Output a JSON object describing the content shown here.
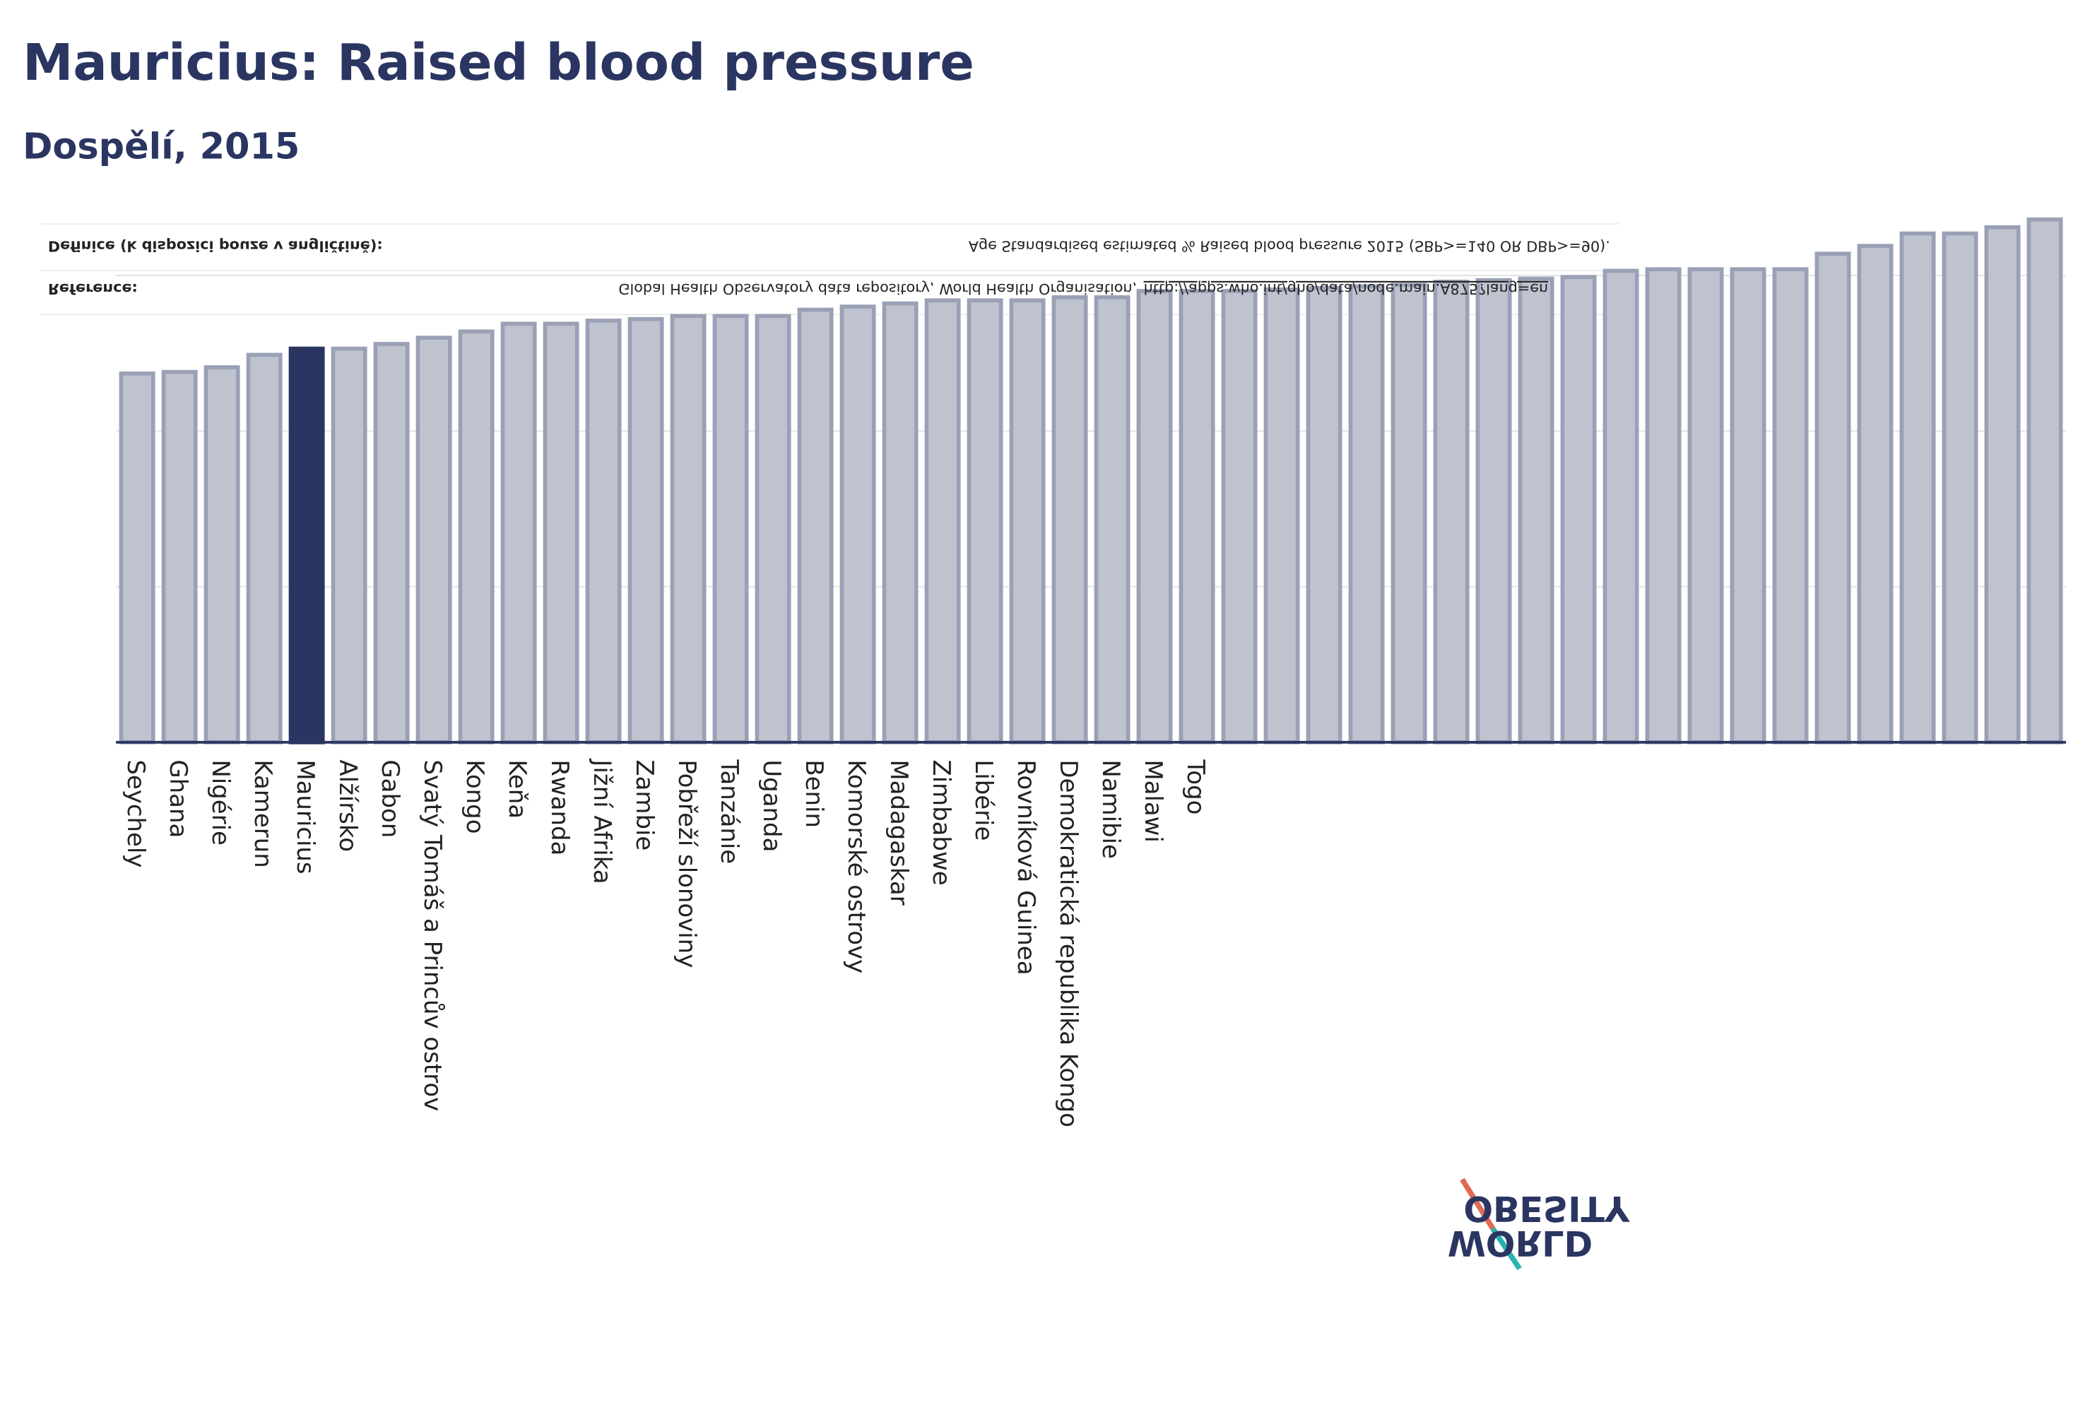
{
  "chart_data": {
    "type": "bar",
    "title": "Mauricius: Raised blood pressure",
    "subtitle": "Dospělí, 2015",
    "categories": [
      "Seychely",
      "Ghana",
      "Nigérie",
      "Kamerun",
      "Mauricius",
      "Alžírsko",
      "Gabon",
      "Svatý Tomáš a Princův ostrov",
      "Kongo",
      "Keňa",
      "Rwanda",
      "Jižní Afrika",
      "Zambie",
      "Pobřeží slonoviny",
      "Tanzánie",
      "Uganda",
      "Benin",
      "Komorské ostrovy",
      "Madagaskar",
      "Zimbabwe",
      "Libérie",
      "Rovníková Guinea",
      "Demokratická republika Kongo",
      "Namibie",
      "Malawi",
      "Togo",
      null,
      null,
      null,
      null,
      null,
      null,
      null,
      null,
      null,
      null,
      null,
      null,
      null,
      null,
      null,
      null,
      null,
      null,
      null,
      null
    ],
    "values": [
      23.7,
      23.8,
      24.1,
      24.9,
      25.3,
      25.3,
      25.6,
      26.0,
      26.4,
      26.9,
      26.9,
      27.1,
      27.2,
      27.4,
      27.4,
      27.4,
      27.8,
      28.0,
      28.2,
      28.4,
      28.4,
      28.4,
      28.6,
      28.6,
      29.0,
      29.0,
      29.0,
      29.1,
      29.2,
      29.3,
      29.4,
      29.6,
      29.7,
      29.8,
      29.9,
      30.3,
      30.4,
      30.4,
      30.4,
      30.4,
      31.4,
      31.9,
      32.7,
      32.7,
      33.1,
      33.6
    ],
    "color": "#bfc3cf",
    "highlight": "Mauricius",
    "highlight_color": "#2b3561",
    "ylim": [
      0,
      34
    ],
    "yticks": [
      0,
      10,
      20,
      30
    ],
    "grid": true
  },
  "notes": {
    "definition_label": "Definice (k dispozici pouze v angličtině):",
    "definition": "Age Standardised estimated % Raised blood pressure 2015 (SBP>=140 OR DBP>=90).",
    "reference_label": "Reference:",
    "reference": "Global Health Observatory data repository, World Health Organisation,",
    "reference_link": "http://apps.who.int/gho/data/node.main.A875?lang=en"
  },
  "logo": {
    "line1": "OBESITY",
    "line2": "WORLD"
  }
}
